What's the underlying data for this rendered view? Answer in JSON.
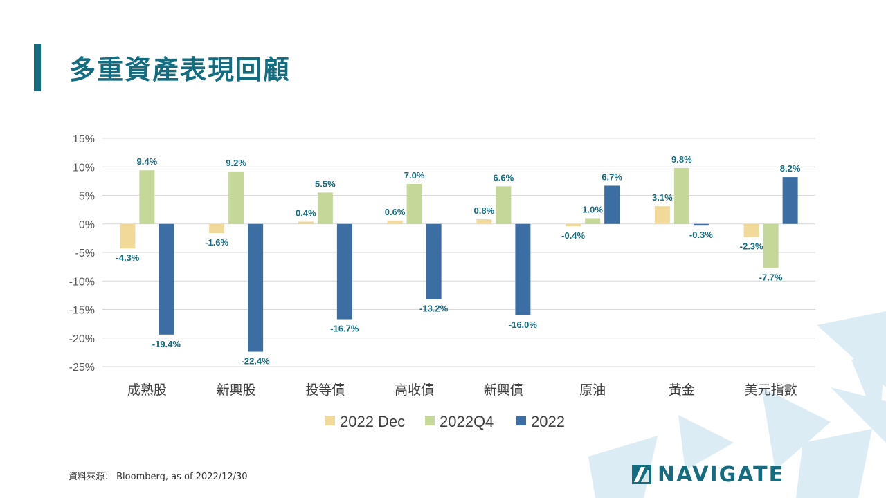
{
  "page": {
    "title": "多重資產表現回顧"
  },
  "source": "資料來源： Bloomberg, as of 2022/12/30",
  "logo": {
    "text": "NAVIGATE"
  },
  "colors": {
    "accent": "#146c80",
    "series": [
      "#f1d99a",
      "#c5d89a",
      "#3d6ea3"
    ]
  },
  "chart_data": {
    "type": "bar",
    "title": "",
    "xlabel": "",
    "ylabel": "",
    "categories": [
      "成熟股",
      "新興股",
      "投等債",
      "高收債",
      "新興債",
      "原油",
      "黃金",
      "美元指數"
    ],
    "series": [
      {
        "name": "2022 Dec",
        "values": [
          -4.3,
          -1.6,
          0.4,
          0.6,
          0.8,
          -0.4,
          3.1,
          -2.3
        ]
      },
      {
        "name": "2022Q4",
        "values": [
          9.4,
          9.2,
          5.5,
          7.0,
          6.6,
          1.0,
          9.8,
          -7.7
        ]
      },
      {
        "name": "2022",
        "values": [
          -19.4,
          -22.4,
          -16.7,
          -13.2,
          -16.0,
          6.7,
          -0.3,
          8.2
        ]
      }
    ],
    "ylim": [
      -25,
      15
    ],
    "yticks": [
      "15%",
      "10%",
      "5%",
      "0%",
      "-5%",
      "-10%",
      "-15%",
      "-20%",
      "-25%"
    ],
    "ytick_values": [
      15,
      10,
      5,
      0,
      -5,
      -10,
      -15,
      -20,
      -25
    ],
    "data_labels": [
      [
        "-4.3%",
        "-1.6%",
        "0.4%",
        "0.6%",
        "0.8%",
        "-0.4%",
        "3.1%",
        "-2.3%"
      ],
      [
        "9.4%",
        "9.2%",
        "5.5%",
        "7.0%",
        "6.6%",
        "1.0%",
        "9.8%",
        "-7.7%"
      ],
      [
        "-19.4%",
        "-22.4%",
        "-16.7%",
        "-13.2%",
        "-16.0%",
        "6.7%",
        "-0.3%",
        "8.2%"
      ]
    ],
    "grid": true,
    "legend_position": "bottom"
  }
}
